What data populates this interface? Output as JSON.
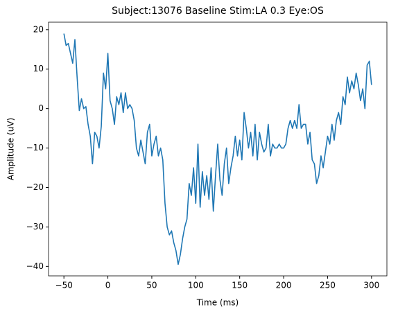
{
  "chart_data": {
    "type": "line",
    "title": "Subject:13076 Baseline Stim:LA 0.3 Eye:OS",
    "x_label": "Time (ms)",
    "y_label": "Amplitude (uV)",
    "x": [
      -50,
      -47.5,
      -45,
      -42.5,
      -40,
      -37.5,
      -35,
      -32.5,
      -30,
      -27.5,
      -25,
      -22.5,
      -20,
      -17.5,
      -15,
      -12.5,
      -10,
      -7.5,
      -5,
      -2.5,
      0,
      2.5,
      5,
      7.5,
      10,
      12.5,
      15,
      17.5,
      20,
      22.5,
      25,
      27.5,
      30,
      32.5,
      35,
      37.5,
      40,
      42.5,
      45,
      47.5,
      50,
      52.5,
      55,
      57.5,
      60,
      62.5,
      65,
      67.5,
      70,
      72.5,
      75,
      77.5,
      80,
      82.5,
      85,
      87.5,
      90,
      92.5,
      95,
      97.5,
      100,
      102.5,
      105,
      107.5,
      110,
      112.5,
      115,
      117.5,
      120,
      122.5,
      125,
      127.5,
      130,
      132.5,
      135,
      137.5,
      140,
      142.5,
      145,
      147.5,
      150,
      152.5,
      155,
      157.5,
      160,
      162.5,
      165,
      167.5,
      170,
      172.5,
      175,
      177.5,
      180,
      182.5,
      185,
      187.5,
      190,
      192.5,
      195,
      197.5,
      200,
      202.5,
      205,
      207.5,
      210,
      212.5,
      215,
      217.5,
      220,
      222.5,
      225,
      227.5,
      230,
      232.5,
      235,
      237.5,
      240,
      242.5,
      245,
      247.5,
      250,
      252.5,
      255,
      257.5,
      260,
      262.5,
      265,
      267.5,
      270,
      272.5,
      275,
      277.5,
      280,
      282.5,
      285,
      287.5,
      290,
      292.5,
      295,
      297.5,
      300
    ],
    "series": [
      {
        "color": "#1f77b4",
        "values": [
          19,
          16,
          16.5,
          14,
          11.5,
          17.5,
          8,
          -0.5,
          2.5,
          0,
          0.5,
          -4,
          -7,
          -14,
          -6,
          -7,
          -10,
          -4.5,
          9,
          5,
          14,
          2,
          0,
          -4,
          3,
          1,
          4,
          -1,
          4,
          0,
          1,
          0,
          -3,
          -10,
          -12,
          -8,
          -11,
          -14,
          -6,
          -4,
          -12,
          -9,
          -7,
          -12,
          -10,
          -13,
          -24,
          -30,
          -32,
          -31,
          -34,
          -36,
          -39.5,
          -37,
          -33,
          -30,
          -28,
          -19,
          -22,
          -15,
          -24,
          -9,
          -25,
          -16,
          -22,
          -17,
          -23,
          -15,
          -26,
          -17,
          -9,
          -18,
          -22,
          -14,
          -10,
          -19,
          -15,
          -12,
          -7,
          -12,
          -8,
          -13,
          -1,
          -5,
          -10,
          -6,
          -12,
          -4,
          -13,
          -6,
          -9,
          -11,
          -10,
          -4,
          -12,
          -9,
          -10,
          -10,
          -9,
          -10,
          -10,
          -9,
          -5,
          -3,
          -5,
          -3,
          -5,
          1,
          -5,
          -4,
          -4,
          -9,
          -6,
          -13,
          -14,
          -19,
          -17,
          -12,
          -15,
          -11,
          -7,
          -9,
          -4,
          -8,
          -3,
          -1,
          -4,
          3,
          1,
          8,
          4,
          7,
          5,
          9,
          6,
          2,
          5,
          0,
          11,
          12,
          6
        ]
      }
    ],
    "xlim": [
      -67.5,
      317.5
    ],
    "ylim": [
      -42.4,
      21.9
    ],
    "xticks": [
      {
        "value": -50,
        "label": "−50"
      },
      0,
      50,
      100,
      150,
      200,
      250,
      300
    ],
    "yticks": [
      {
        "value": -40,
        "label": "−40"
      },
      {
        "value": -30,
        "label": "−30"
      },
      {
        "value": -20,
        "label": "−20"
      },
      {
        "value": -10,
        "label": "−10"
      },
      0,
      10,
      20
    ],
    "grid": false
  }
}
